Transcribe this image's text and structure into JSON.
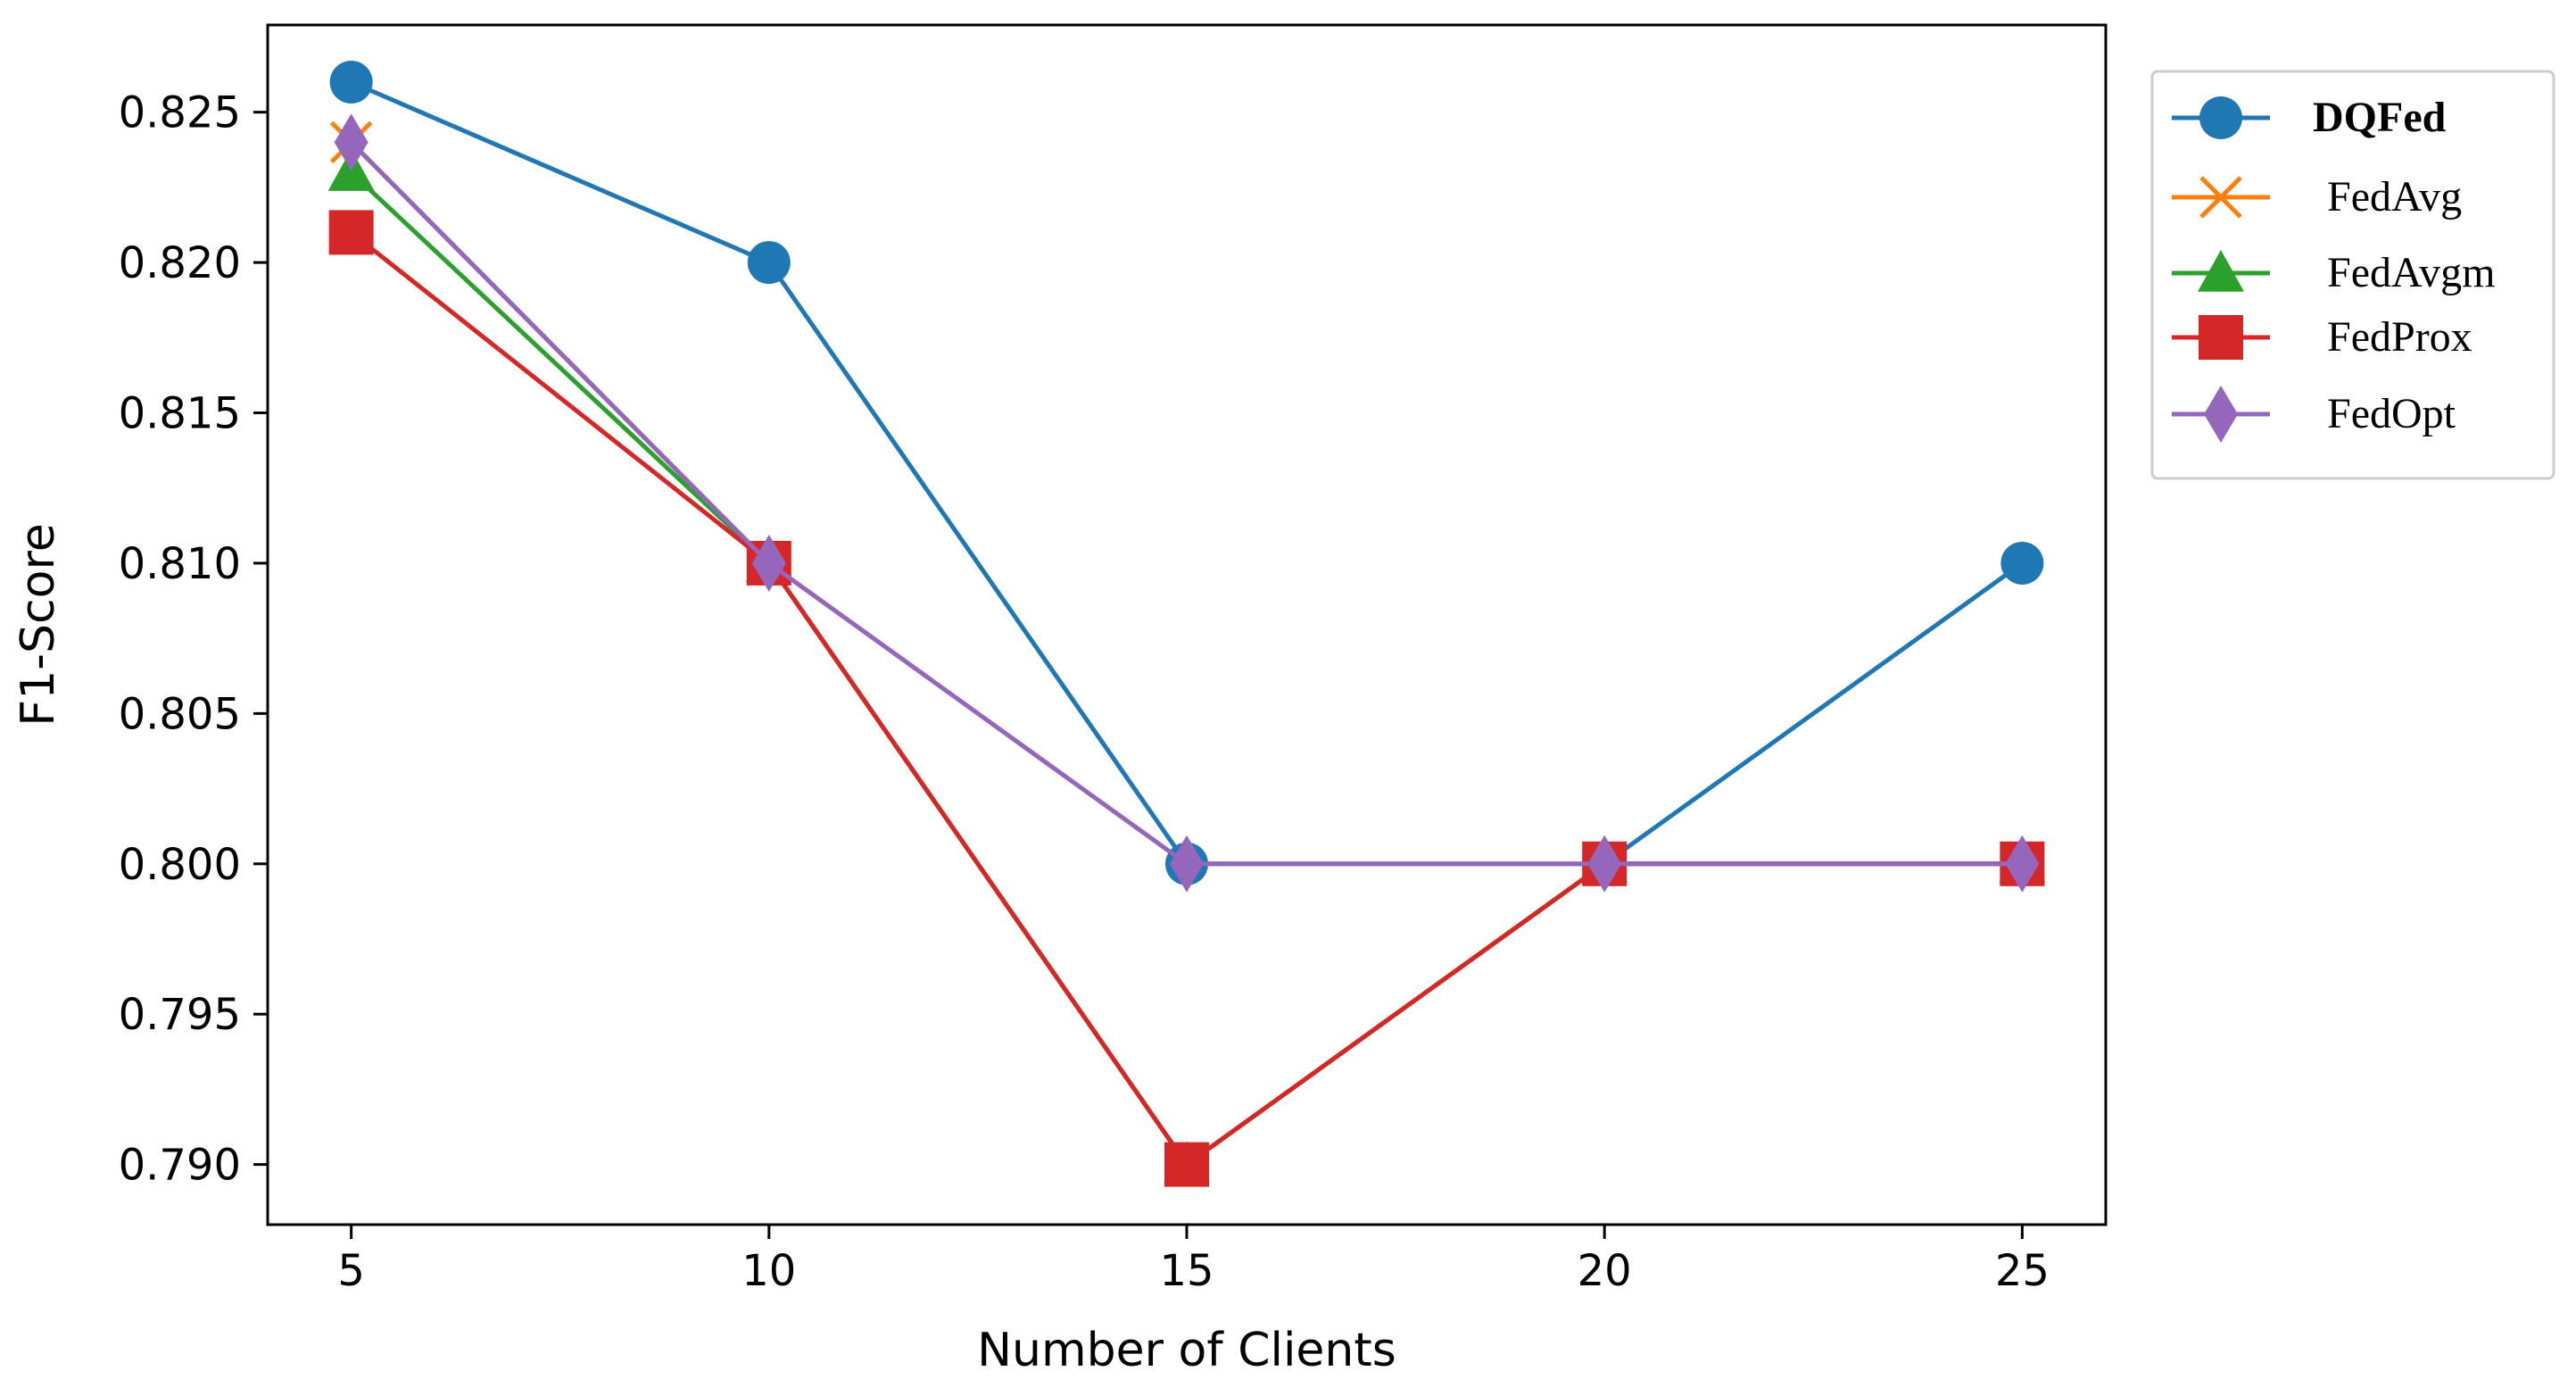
{
  "chart_data": {
    "type": "line",
    "xlabel": "Number of Clients",
    "ylabel": "F1-Score",
    "x": [
      5,
      10,
      15,
      20,
      25
    ],
    "xlim": [
      4,
      26
    ],
    "ylim": [
      0.788,
      0.8279
    ],
    "xticks": [
      "5",
      "10",
      "15",
      "20",
      "25"
    ],
    "xtick_values": [
      5,
      10,
      15,
      20,
      25
    ],
    "yticks": [
      "0.790",
      "0.795",
      "0.800",
      "0.805",
      "0.810",
      "0.815",
      "0.820",
      "0.825"
    ],
    "ytick_values": [
      0.79,
      0.795,
      0.8,
      0.805,
      0.81,
      0.815,
      0.82,
      0.825
    ],
    "grid": false,
    "legend_position": "outside-right-top",
    "series": [
      {
        "name": "DQFed",
        "color": "#1f77b4",
        "marker": "circle",
        "bold": true,
        "values": [
          0.826,
          0.82,
          0.8,
          0.8,
          0.81
        ]
      },
      {
        "name": "FedAvg",
        "color": "#ff7f0e",
        "marker": "x",
        "bold": false,
        "values": [
          0.824,
          0.81,
          0.79,
          0.8,
          0.8
        ]
      },
      {
        "name": "FedAvgm",
        "color": "#2ca02c",
        "marker": "triangle",
        "bold": false,
        "values": [
          0.823,
          0.81,
          0.79,
          0.8,
          0.8
        ]
      },
      {
        "name": "FedProx",
        "color": "#d62728",
        "marker": "square",
        "bold": false,
        "values": [
          0.821,
          0.81,
          0.79,
          0.8,
          0.8
        ]
      },
      {
        "name": "FedOpt",
        "color": "#9467bd",
        "marker": "diamond",
        "bold": false,
        "values": [
          0.824,
          0.81,
          0.8,
          0.8,
          0.8
        ]
      }
    ]
  }
}
